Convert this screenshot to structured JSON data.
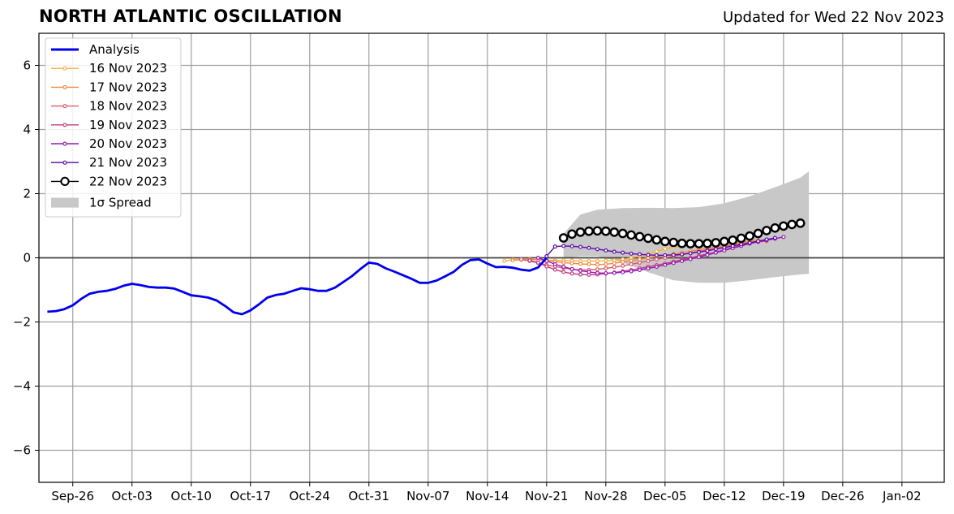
{
  "header": {
    "title": "NORTH ATLANTIC OSCILLATION",
    "updated": "Updated for Wed 22 Nov 2023"
  },
  "chart_data": {
    "type": "line",
    "title": "NORTH ATLANTIC OSCILLATION",
    "subtitle": "Updated for Wed 22 Nov 2023",
    "xlabel": "",
    "ylabel": "",
    "xlim": [
      "2023-09-22",
      "2024-01-07"
    ],
    "ylim": [
      -7,
      7
    ],
    "x_ticks": [
      "Sep-26",
      "Oct-03",
      "Oct-10",
      "Oct-17",
      "Oct-24",
      "Oct-31",
      "Nov-07",
      "Nov-14",
      "Nov-21",
      "Nov-28",
      "Dec-05",
      "Dec-12",
      "Dec-19",
      "Dec-26",
      "Jan-02"
    ],
    "x_tick_dates": [
      "2023-09-26",
      "2023-10-03",
      "2023-10-10",
      "2023-10-17",
      "2023-10-24",
      "2023-10-31",
      "2023-11-07",
      "2023-11-14",
      "2023-11-21",
      "2023-11-28",
      "2023-12-05",
      "2023-12-12",
      "2023-12-19",
      "2023-12-26",
      "2024-01-02"
    ],
    "y_ticks": [
      6,
      4,
      2,
      0,
      -2,
      -4,
      -6
    ],
    "y_tick_labels": [
      "6",
      "4",
      "2",
      "0",
      "−2",
      "−4",
      "−6"
    ],
    "grid": true,
    "legend_position": "top-left",
    "legend": [
      "Analysis",
      "16 Nov 2023",
      "17 Nov 2023",
      "18 Nov 2023",
      "19 Nov 2023",
      "20 Nov 2023",
      "21 Nov 2023",
      "22 Nov 2023",
      "1σ Spread"
    ],
    "analysis": {
      "name": "Analysis",
      "color": "#0000ee",
      "start_date": "2023-09-23",
      "step_days": 1,
      "values": [
        -1.68,
        -1.66,
        -1.6,
        -1.48,
        -1.28,
        -1.12,
        -1.06,
        -1.03,
        -0.97,
        -0.87,
        -0.81,
        -0.85,
        -0.91,
        -0.93,
        -0.93,
        -0.96,
        -1.06,
        -1.17,
        -1.2,
        -1.24,
        -1.33,
        -1.5,
        -1.7,
        -1.76,
        -1.64,
        -1.45,
        -1.24,
        -1.16,
        -1.12,
        -1.03,
        -0.95,
        -0.98,
        -1.03,
        -1.03,
        -0.93,
        -0.75,
        -0.57,
        -0.35,
        -0.15,
        -0.19,
        -0.33,
        -0.43,
        -0.54,
        -0.65,
        -0.78,
        -0.78,
        -0.71,
        -0.58,
        -0.44,
        -0.22,
        -0.07,
        -0.05,
        -0.18,
        -0.29,
        -0.28,
        -0.31,
        -0.37,
        -0.4,
        -0.3,
        0.0
      ]
    },
    "forecasts": [
      {
        "name": "16 Nov 2023",
        "color": "#f6b042",
        "start_date": "2023-11-16",
        "step_days": 1,
        "values": [
          -0.1,
          -0.06,
          -0.05,
          -0.05,
          -0.06,
          -0.07,
          -0.08,
          -0.08,
          -0.09,
          -0.1,
          -0.1,
          -0.1,
          -0.09,
          -0.08,
          -0.05,
          0.0,
          0.05,
          0.12,
          0.2,
          0.28,
          0.33,
          0.38,
          0.42,
          0.44,
          0.45,
          0.45,
          0.46,
          0.47,
          0.48,
          0.5
        ]
      },
      {
        "name": "17 Nov 2023",
        "color": "#ef8a44",
        "start_date": "2023-11-17",
        "step_days": 1,
        "values": [
          -0.08,
          -0.06,
          -0.05,
          -0.06,
          -0.08,
          -0.12,
          -0.15,
          -0.17,
          -0.19,
          -0.2,
          -0.21,
          -0.2,
          -0.17,
          -0.13,
          -0.09,
          -0.05,
          0.0,
          0.04,
          0.08,
          0.12,
          0.16,
          0.2,
          0.25,
          0.3,
          0.35,
          0.4,
          0.44,
          0.48,
          0.52,
          0.55
        ]
      },
      {
        "name": "18 Nov 2023",
        "color": "#dc5c6e",
        "start_date": "2023-11-18",
        "step_days": 1,
        "values": [
          -0.05,
          -0.1,
          -0.16,
          -0.22,
          -0.27,
          -0.32,
          -0.36,
          -0.38,
          -0.38,
          -0.36,
          -0.33,
          -0.29,
          -0.25,
          -0.2,
          -0.15,
          -0.1,
          -0.05,
          0.0,
          0.05,
          0.1,
          0.15,
          0.2,
          0.25,
          0.3,
          0.35,
          0.39,
          0.43,
          0.47,
          0.5,
          0.52
        ]
      },
      {
        "name": "19 Nov 2023",
        "color": "#c13b82",
        "start_date": "2023-11-19",
        "step_days": 1,
        "values": [
          -0.08,
          -0.15,
          -0.27,
          -0.37,
          -0.44,
          -0.49,
          -0.52,
          -0.53,
          -0.52,
          -0.49,
          -0.46,
          -0.42,
          -0.38,
          -0.33,
          -0.28,
          -0.23,
          -0.18,
          -0.12,
          -0.06,
          0.0,
          0.06,
          0.12,
          0.18,
          0.25,
          0.32,
          0.39,
          0.45,
          0.5,
          0.55,
          0.6
        ]
      },
      {
        "name": "20 Nov 2023",
        "color": "#9a1ab6",
        "start_date": "2023-11-20",
        "step_days": 1,
        "values": [
          0.0,
          -0.1,
          -0.2,
          -0.28,
          -0.35,
          -0.4,
          -0.44,
          -0.47,
          -0.48,
          -0.47,
          -0.45,
          -0.42,
          -0.38,
          -0.33,
          -0.28,
          -0.22,
          -0.16,
          -0.1,
          -0.04,
          0.02,
          0.09,
          0.16,
          0.23,
          0.3,
          0.37,
          0.44,
          0.5,
          0.55,
          0.6,
          0.65
        ]
      },
      {
        "name": "21 Nov 2023",
        "color": "#5c0aa8",
        "start_date": "2023-11-21",
        "step_days": 1,
        "values": [
          0.05,
          0.35,
          0.37,
          0.36,
          0.34,
          0.31,
          0.27,
          0.23,
          0.19,
          0.16,
          0.13,
          0.11,
          0.09,
          0.08,
          0.08,
          0.09,
          0.11,
          0.14,
          0.18,
          0.22,
          0.27,
          0.32,
          0.37,
          0.42,
          0.47,
          0.52,
          0.57,
          0.62
        ]
      },
      {
        "name": "22 Nov 2023",
        "color": "#000000",
        "start_date": "2023-11-23",
        "step_days": 1,
        "values": [
          0.62,
          0.74,
          0.8,
          0.83,
          0.84,
          0.83,
          0.8,
          0.76,
          0.71,
          0.66,
          0.61,
          0.56,
          0.51,
          0.48,
          0.45,
          0.44,
          0.44,
          0.45,
          0.47,
          0.51,
          0.55,
          0.61,
          0.68,
          0.76,
          0.85,
          0.93,
          0.99,
          1.04,
          1.08
        ]
      }
    ],
    "spread": {
      "name": "1σ Spread",
      "color": "#c8c8c8",
      "dates": [
        "2023-11-23",
        "2023-11-25",
        "2023-11-27",
        "2023-11-30",
        "2023-12-03",
        "2023-12-06",
        "2023-12-09",
        "2023-12-12",
        "2023-12-15",
        "2023-12-18",
        "2023-12-21",
        "2023-12-22"
      ],
      "upper": [
        0.75,
        1.35,
        1.5,
        1.55,
        1.56,
        1.55,
        1.58,
        1.7,
        1.92,
        2.2,
        2.5,
        2.7
      ],
      "lower": [
        0.0,
        0.05,
        0.05,
        -0.15,
        -0.45,
        -0.7,
        -0.78,
        -0.78,
        -0.7,
        -0.6,
        -0.52,
        -0.5
      ]
    }
  }
}
